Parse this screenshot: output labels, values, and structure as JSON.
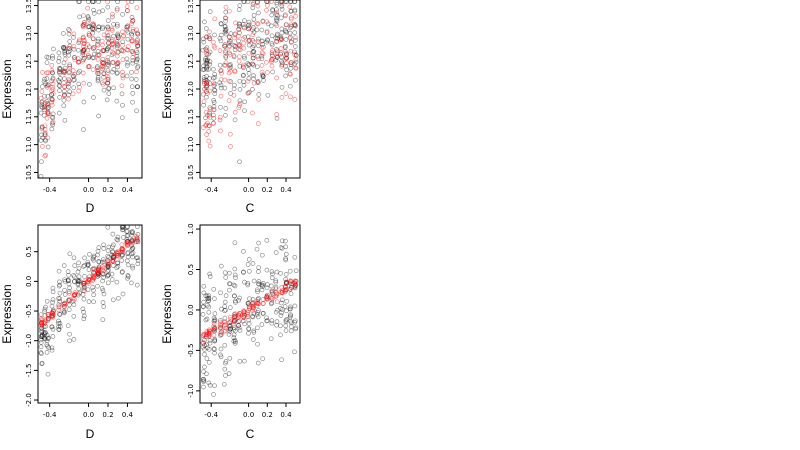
{
  "chart_data": [
    {
      "type": "scatter",
      "xlabel": "D",
      "ylabel": "Expression",
      "xlim": [
        -0.52,
        0.55
      ],
      "ylim": [
        10.4,
        13.6
      ],
      "xticks": [
        -0.4,
        0.0,
        0.2,
        0.4
      ],
      "xtick_labels": [
        "-0.4",
        "0.0",
        "0.2",
        "0.4"
      ],
      "yticks": [
        10.5,
        11.0,
        11.5,
        12.0,
        12.5,
        13.0,
        13.5
      ],
      "ytick_labels": [
        "10.5",
        "11.0",
        "11.5",
        "12.0",
        "12.5",
        "13.0",
        "13.5"
      ],
      "grid": false,
      "series": [
        {
          "color": "#000000",
          "kind": "observed",
          "n": 300,
          "center": [
            [
              -0.48,
              11.2
            ],
            [
              -0.42,
              11.9
            ],
            [
              -0.3,
              12.2
            ],
            [
              -0.2,
              12.5
            ],
            [
              -0.1,
              12.7
            ],
            [
              0.0,
              12.9
            ],
            [
              0.1,
              12.7
            ],
            [
              0.2,
              12.6
            ],
            [
              0.3,
              12.7
            ],
            [
              0.45,
              12.6
            ]
          ],
          "spread": 0.45
        },
        {
          "color": "#ff0000",
          "kind": "fitted",
          "n": 180,
          "center": [
            [
              -0.48,
              11.6
            ],
            [
              -0.3,
              12.1
            ],
            [
              -0.1,
              12.6
            ],
            [
              0.0,
              12.8
            ],
            [
              0.1,
              12.6
            ],
            [
              0.3,
              12.6
            ],
            [
              0.5,
              12.9
            ]
          ],
          "spread": 0.35
        }
      ]
    },
    {
      "type": "scatter",
      "xlabel": "C",
      "ylabel": "Expression",
      "xlim": [
        -0.52,
        0.55
      ],
      "ylim": [
        10.4,
        13.6
      ],
      "xticks": [
        -0.4,
        0.0,
        0.2,
        0.4
      ],
      "xtick_labels": [
        "-0.4",
        "0.0",
        "0.2",
        "0.4"
      ],
      "yticks": [
        10.5,
        11.0,
        11.5,
        12.0,
        12.5,
        13.0,
        13.5
      ],
      "ytick_labels": [
        "10.5",
        "11.0",
        "11.5",
        "12.0",
        "12.5",
        "13.0",
        "13.5"
      ],
      "grid": false,
      "series": [
        {
          "color": "#000000",
          "kind": "observed",
          "n": 300,
          "center": [
            [
              -0.48,
              12.3
            ],
            [
              -0.3,
              12.5
            ],
            [
              -0.1,
              12.7
            ],
            [
              0.1,
              12.8
            ],
            [
              0.3,
              12.9
            ],
            [
              0.5,
              12.9
            ]
          ],
          "spread": 0.5
        },
        {
          "color": "#ff0000",
          "kind": "fitted",
          "n": 180,
          "center": [
            [
              -0.48,
              11.8
            ],
            [
              -0.3,
              12.3
            ],
            [
              -0.1,
              12.5
            ],
            [
              0.1,
              12.6
            ],
            [
              0.3,
              12.7
            ],
            [
              0.5,
              12.7
            ]
          ],
          "spread": 0.55
        }
      ]
    },
    {
      "type": "scatter",
      "xlabel": "D",
      "ylabel": "Expression",
      "xlim": [
        -0.52,
        0.55
      ],
      "ylim": [
        -2.05,
        0.95
      ],
      "xticks": [
        -0.4,
        0.0,
        0.2,
        0.4
      ],
      "xtick_labels": [
        "-0.4",
        "0.0",
        "0.2",
        "0.4"
      ],
      "yticks": [
        -2.0,
        -1.5,
        -1.0,
        -0.5,
        0.0,
        0.5
      ],
      "ytick_labels": [
        "-2.0",
        "-1.5",
        "-1.0",
        "-0.5",
        "0.0",
        "0.5"
      ],
      "grid": false,
      "series": [
        {
          "color": "#000000",
          "kind": "observed",
          "n": 300,
          "center": [
            [
              -0.48,
              -0.9
            ],
            [
              -0.3,
              -0.45
            ],
            [
              -0.1,
              -0.1
            ],
            [
              0.0,
              0.05
            ],
            [
              0.2,
              0.3
            ],
            [
              0.45,
              0.55
            ]
          ],
          "spread": 0.28
        },
        {
          "color": "#ff0000",
          "kind": "fitted",
          "n": 120,
          "center": [
            [
              -0.48,
              -0.72
            ],
            [
              0.0,
              0.0
            ],
            [
              0.48,
              0.72
            ]
          ],
          "spread": 0.04
        }
      ]
    },
    {
      "type": "scatter",
      "xlabel": "C",
      "ylabel": "Expression",
      "xlim": [
        -0.52,
        0.55
      ],
      "ylim": [
        -1.15,
        1.05
      ],
      "xticks": [
        -0.4,
        0.0,
        0.2,
        0.4
      ],
      "xtick_labels": [
        "-0.4",
        "0.0",
        "0.2",
        "0.4"
      ],
      "yticks": [
        -1.0,
        -0.5,
        0.0,
        0.5,
        1.0
      ],
      "ytick_labels": [
        "-1.0",
        "-0.5",
        "0.0",
        "0.5",
        "1.0"
      ],
      "grid": false,
      "series": [
        {
          "color": "#000000",
          "kind": "observed",
          "n": 300,
          "center": [
            [
              -0.48,
              -0.35
            ],
            [
              -0.3,
              -0.2
            ],
            [
              -0.1,
              -0.05
            ],
            [
              0.1,
              0.1
            ],
            [
              0.3,
              0.2
            ],
            [
              0.5,
              0.3
            ]
          ],
          "spread": 0.35
        },
        {
          "color": "#ff0000",
          "kind": "fitted",
          "n": 120,
          "center": [
            [
              -0.48,
              -0.32
            ],
            [
              0.0,
              0.0
            ],
            [
              0.48,
              0.32
            ]
          ],
          "spread": 0.04
        }
      ]
    }
  ]
}
